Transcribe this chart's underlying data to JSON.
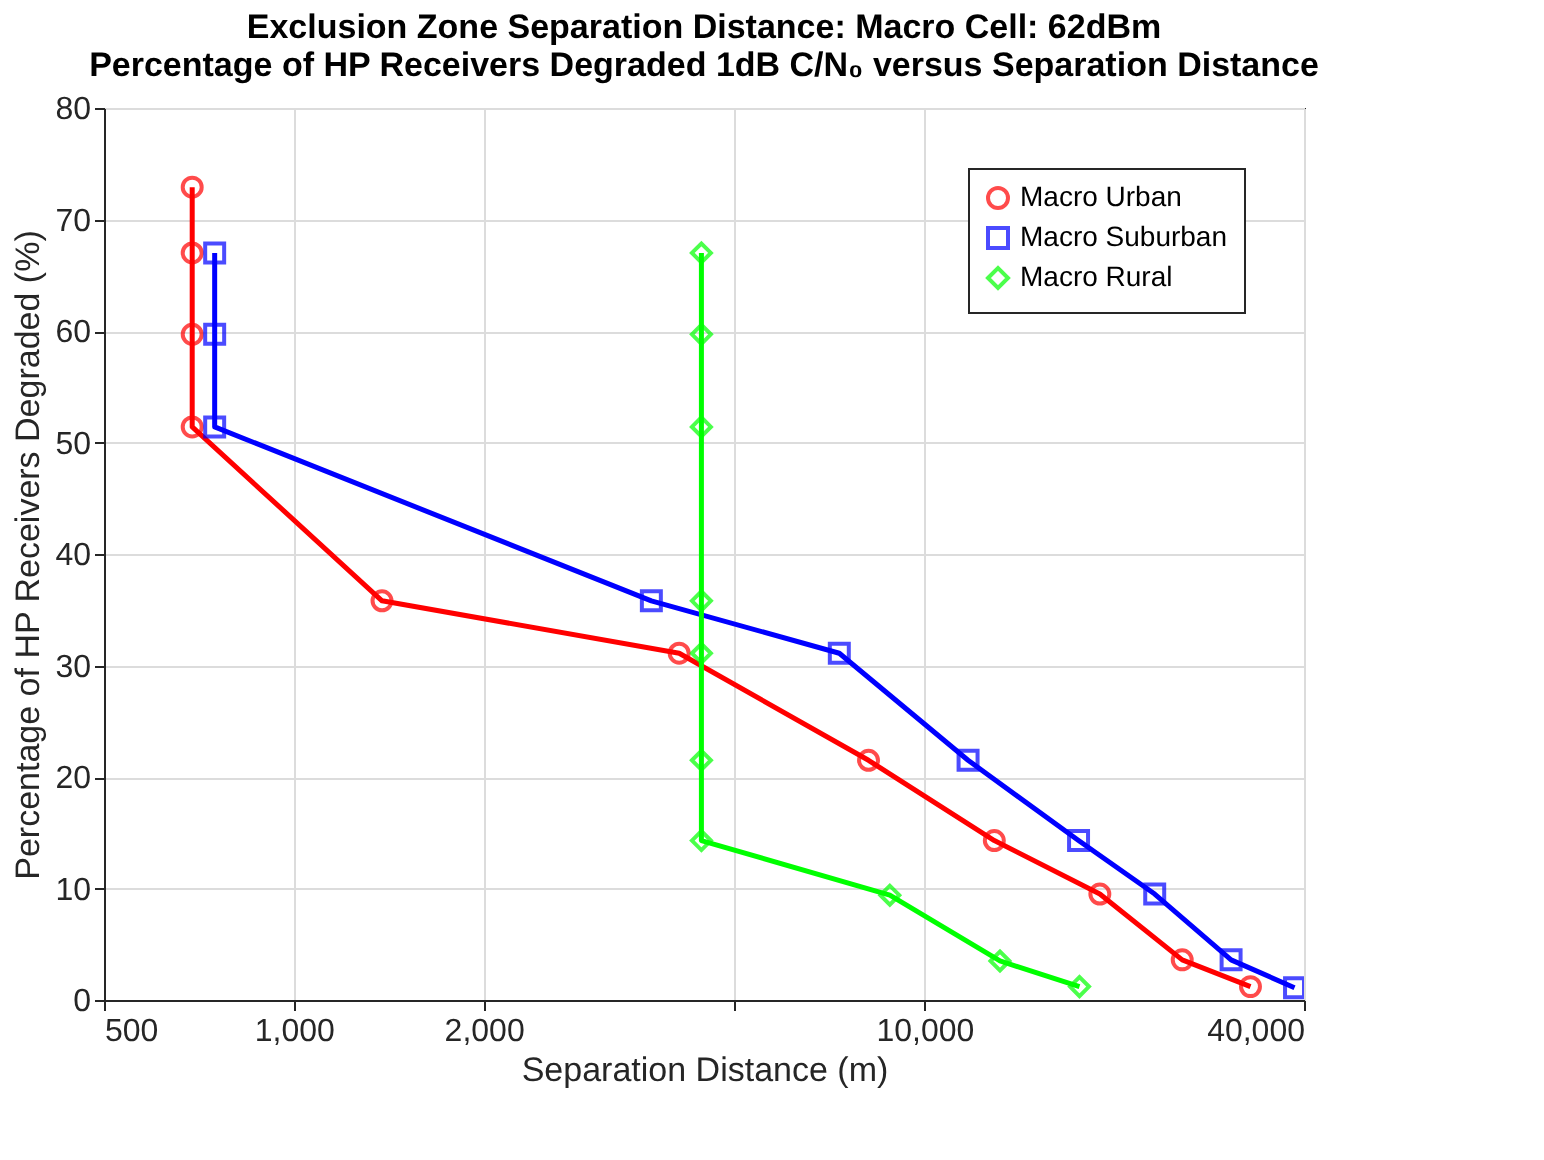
{
  "chart_data": {
    "type": "line",
    "title": [
      "Exclusion Zone Separation Distance: Macro Cell: 62dBm",
      "Percentage of HP Receivers Degraded 1dB C/N₀ versus Separation Distance"
    ],
    "xlabel": "Separation Distance (m)",
    "ylabel": "Percentage of HP Receivers Degraded (%)",
    "log": "x",
    "xlim": [
      500,
      40000
    ],
    "xticks": [
      500,
      {
        "value": 1000,
        "label": "1,000"
      },
      {
        "value": 2000,
        "label": "2,000"
      },
      {
        "value": 5000,
        "label": null
      },
      {
        "value": 10000,
        "label": "10,000"
      },
      {
        "value": 40000,
        "label": "40,000"
      }
    ],
    "ylim": [
      0,
      80
    ],
    "yticks": [
      0,
      10,
      20,
      30,
      40,
      50,
      60,
      70,
      80
    ],
    "grid": true,
    "legend": "top right",
    "line_style": "solid",
    "series": [
      {
        "name": "Macro Urban",
        "color": "#ff0000",
        "marker": "circle",
        "x": [
          690,
          690,
          690,
          690,
          1380,
          4085,
          8155,
          12910,
          18980,
          25640,
          32900
        ],
        "values": [
          72.9,
          67.0,
          59.7,
          51.4,
          35.8,
          31.1,
          21.5,
          14.3,
          9.5,
          3.6,
          1.2
        ]
      },
      {
        "name": "Macro Suburban",
        "color": "#0000ff",
        "marker": "square",
        "x": [
          749,
          749,
          749,
          3690,
          7330,
          11730,
          17560,
          23190,
          30650,
          38640
        ],
        "values": [
          67.0,
          59.7,
          51.4,
          35.8,
          31.1,
          21.5,
          14.3,
          9.5,
          3.6,
          1.1
        ]
      },
      {
        "name": "Macro Rural",
        "color": "#00ff00",
        "marker": "diamond",
        "x": [
          4430,
          4430,
          4430,
          4430,
          4430,
          4430,
          4430,
          8815,
          13180,
          17620
        ],
        "values": [
          67.0,
          59.7,
          51.4,
          35.8,
          31.1,
          21.5,
          14.3,
          9.4,
          3.5,
          1.2
        ]
      }
    ]
  }
}
